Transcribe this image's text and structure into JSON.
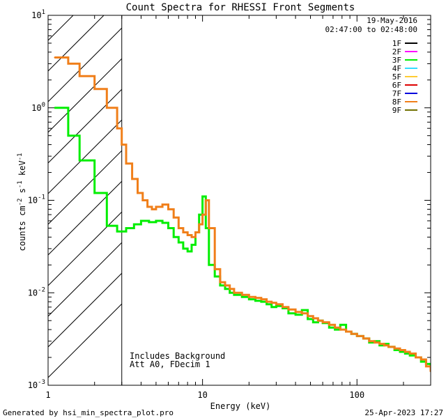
{
  "chart_data": {
    "type": "line",
    "title": "Count Spectra for RHESSI Front Segments",
    "xlabel": "Energy (keV)",
    "ylabel": {
      "main": "counts cm",
      "sup1": "-2",
      "mid": " s",
      "sup2": "-1",
      "end": " keV",
      "sup3": "-1"
    },
    "x_scale": "log",
    "y_scale": "log",
    "xlim": [
      1,
      300
    ],
    "ylim": [
      0.001,
      10
    ],
    "x_ticks": [
      {
        "value": 1,
        "label": "1"
      },
      {
        "value": 10,
        "label": "10"
      },
      {
        "value": 100,
        "label": "100"
      }
    ],
    "y_ticks": [
      {
        "value": 10,
        "base": "10",
        "exp": "1"
      },
      {
        "value": 1,
        "base": "10",
        "exp": "0"
      },
      {
        "value": 0.1,
        "base": "10",
        "exp": "-1"
      },
      {
        "value": 0.01,
        "base": "10",
        "exp": "-2"
      },
      {
        "value": 0.001,
        "base": "10",
        "exp": "-3"
      }
    ],
    "date": "19-May-2016",
    "time_range": "02:47:00 to 02:48:00",
    "notes": [
      "Includes Background",
      "Att A0, FDecim 1"
    ],
    "excluded_region_keV": [
      1,
      3
    ],
    "legend": [
      {
        "label": "1F",
        "color": "#000000"
      },
      {
        "label": "2F",
        "color": "#ff00ff"
      },
      {
        "label": "3F",
        "color": "#00ee00"
      },
      {
        "label": "4F",
        "color": "#33ddff"
      },
      {
        "label": "5F",
        "color": "#ffcc33"
      },
      {
        "label": "6F",
        "color": "#dd0000"
      },
      {
        "label": "7F",
        "color": "#0000dd"
      },
      {
        "label": "8F",
        "color": "#f07f1a"
      },
      {
        "label": "9F",
        "color": "#707000"
      }
    ],
    "series": [
      {
        "name": "3F",
        "color": "#00ee00",
        "x": [
          1.1,
          1.35,
          1.6,
          2.0,
          2.4,
          2.8,
          3.2,
          3.6,
          4.0,
          4.5,
          5.0,
          5.5,
          6.0,
          6.5,
          7.0,
          7.5,
          8.0,
          8.5,
          9.0,
          9.5,
          10.0,
          10.5,
          11.0,
          12,
          13,
          14,
          15,
          16,
          18,
          20,
          22,
          24,
          26,
          28,
          30,
          33,
          36,
          40,
          44,
          48,
          52,
          56,
          60,
          66,
          72,
          78,
          85,
          92,
          100,
          110,
          120,
          130,
          140,
          150,
          160,
          175,
          190,
          205,
          220,
          240,
          260,
          280,
          300
        ],
        "y": [
          1.0,
          0.5,
          0.27,
          0.12,
          0.053,
          0.046,
          0.05,
          0.055,
          0.06,
          0.058,
          0.06,
          0.057,
          0.05,
          0.04,
          0.035,
          0.03,
          0.028,
          0.033,
          0.045,
          0.07,
          0.11,
          0.05,
          0.02,
          0.015,
          0.012,
          0.011,
          0.01,
          0.0095,
          0.009,
          0.0085,
          0.0082,
          0.008,
          0.0075,
          0.007,
          0.0072,
          0.0068,
          0.006,
          0.0058,
          0.0065,
          0.0052,
          0.0048,
          0.005,
          0.0047,
          0.0042,
          0.004,
          0.0045,
          0.0038,
          0.0036,
          0.0034,
          0.0032,
          0.0029,
          0.003,
          0.0027,
          0.0028,
          0.0026,
          0.0024,
          0.0023,
          0.0022,
          0.0021,
          0.002,
          0.0018,
          0.0017,
          0.0016
        ]
      },
      {
        "name": "8F",
        "color": "#f07f1a",
        "x": [
          1.1,
          1.35,
          1.6,
          2.0,
          2.4,
          2.8,
          3.0,
          3.2,
          3.5,
          3.8,
          4.1,
          4.4,
          4.7,
          5.0,
          5.5,
          6.0,
          6.5,
          7.0,
          7.5,
          8.0,
          8.5,
          9.0,
          9.5,
          10.0,
          10.5,
          11.0,
          12,
          13,
          14,
          15,
          16,
          18,
          20,
          22,
          24,
          26,
          28,
          30,
          33,
          36,
          40,
          44,
          48,
          52,
          56,
          60,
          66,
          72,
          78,
          85,
          92,
          100,
          110,
          120,
          130,
          140,
          150,
          160,
          175,
          190,
          205,
          220,
          240,
          260,
          280,
          300
        ],
        "y": [
          3.5,
          3.0,
          2.2,
          1.6,
          1.0,
          0.6,
          0.4,
          0.25,
          0.17,
          0.12,
          0.1,
          0.085,
          0.08,
          0.085,
          0.09,
          0.08,
          0.065,
          0.05,
          0.045,
          0.042,
          0.04,
          0.045,
          0.055,
          0.07,
          0.1,
          0.05,
          0.018,
          0.013,
          0.012,
          0.011,
          0.01,
          0.0095,
          0.009,
          0.0088,
          0.0085,
          0.008,
          0.0078,
          0.0075,
          0.007,
          0.0066,
          0.0062,
          0.006,
          0.0056,
          0.0053,
          0.005,
          0.0048,
          0.0045,
          0.0042,
          0.004,
          0.0038,
          0.0036,
          0.0034,
          0.0032,
          0.003,
          0.0029,
          0.0028,
          0.0027,
          0.0026,
          0.0025,
          0.0024,
          0.0023,
          0.0022,
          0.002,
          0.0019,
          0.0016,
          0.0014
        ]
      }
    ]
  },
  "footer": {
    "generated_by": "Generated by hsi_min_spectra_plot.pro",
    "timestamp": "25-Apr-2023 17:27"
  }
}
